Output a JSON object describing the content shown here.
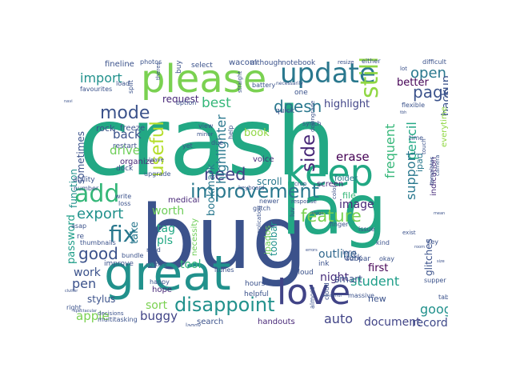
{
  "wordcloud": {
    "colors": {
      "background": "#ffffff",
      "crash": "#22a884",
      "bug": "#3b528b",
      "lag": "#22a884",
      "great": "#21918c",
      "please": "#7ad151",
      "keep": "#22a884",
      "love": "#414487",
      "update": "#2a788e",
      "add": "#35b779",
      "fix": "#2a788e",
      "improvement": "#2a788e",
      "disappoint": "#21918c",
      "feature": "#7ad151",
      "mode": "#3b528b",
      "need": "#414487",
      "useful": "#b5de2b",
      "still": "#90d743",
      "open": "#2a788e",
      "page": "#3b528b",
      "doesn": "#2a788e",
      "export": "#21918c",
      "good": "#3b528b",
      "side": "#482878",
      "best": "#35b779",
      "import": "#21918c",
      "highlighter": "#2a788e",
      "student": "#1f9e89",
      "google": "#21918c",
      "auto": "#414487",
      "document": "#414487",
      "pen": "#3b528b",
      "pencil": "#22a884",
      "support": "#2a788e",
      "frequent": "#35b779",
      "backup": "#3b528b",
      "back": "#3b528b",
      "drive": "#6ece58",
      "worth": "#6ece58",
      "buggy": "#414487",
      "sort": "#7ad151",
      "tool": "#35b779",
      "apple": "#7ad151",
      "work": "#3b528b",
      "erase": "#440154",
      "image": "#482878",
      "record": "#3e4989",
      "night": "#472d7b",
      "outline": "#31688e",
      "tag": "#22a884",
      "pls": "#22a884",
      "take": "#2a788e",
      "password": "#1f9e89",
      "bookmark": "#2a788e",
      "book": "#90d743",
      "highlight": "#414487",
      "request": "#482878",
      "better": "#440154",
      "first": "#440154",
      "smart": "#3b528b",
      "toolbar": "#21918c",
      "scroll": "#2a788e",
      "function": "#21918c",
      "sometimes": "#3b528b",
      "stylus": "#3b528b",
      "glitches": "#3b528b",
      "new": "#3b528b",
      "ipad": "#2a788e",
      "ipados": "#6ece58",
      "multiple": "#482878",
      "everytime": "#90d743",
      "notetaking": "#31688e",
      "indication": "#472d7b",
      "screen": "#482878",
      "voice": "#472d7b",
      "folder": "#2a788e",
      "hope": "#482878",
      "handouts": "#482878",
      "search": "#3b528b",
      "organize": "#482878",
      "dark": "#3b528b",
      "pdf": "#22a884",
      "file": "#35b779",
      "medical": "#482878",
      "necessity": "#6ece58",
      "tiny": "#31688e",
      "small": "#2a788e"
    },
    "words": {
      "crash": "crash",
      "bug": "bug",
      "lag": "lag",
      "great": "great",
      "please": "please",
      "keep": "keep",
      "love": "love",
      "update": "update",
      "add": "add",
      "fix": "fix",
      "improvement": "improvement",
      "disappoint": "disappoint",
      "feature": "feature",
      "mode": "mode",
      "need": "need",
      "useful": "useful",
      "still": "still",
      "open": "open",
      "page": "page",
      "doesn": "doesn",
      "export": "export",
      "good": "good",
      "side": "side",
      "best": "best",
      "import": "import",
      "highlighter": "highlighter",
      "student": "student",
      "google": "google",
      "auto": "auto",
      "document": "document",
      "pen": "pen",
      "pencil": "pencil",
      "support": "support",
      "frequent": "frequent",
      "backup": "backup",
      "back": "back",
      "drive": "drive",
      "worth": "worth",
      "buggy": "buggy",
      "sort": "sort",
      "tool": "tool",
      "apple": "apple",
      "work": "work",
      "erase": "erase",
      "image": "image",
      "record": "record",
      "night": "night",
      "outline": "outline",
      "tag": "tag",
      "pls": "pls",
      "take": "take",
      "password": "password",
      "bookmark": "bookmark",
      "book": "book",
      "highlight": "highlight",
      "request": "request",
      "better": "better",
      "first": "first",
      "smart": "smart",
      "toolbar": "toolbar",
      "scroll": "scroll",
      "function": "function",
      "sometimes": "sometimes",
      "stylus": "stylus",
      "glitches": "glitches",
      "new": "new",
      "ipad": "ipad",
      "ipados": "ipados",
      "multiple": "multiple",
      "everytime": "everytime",
      "notetaking": "notetaking",
      "indication": "indication",
      "screen": "screen",
      "voice": "voice",
      "folder": "folder",
      "hope": "hope",
      "handouts": "handouts",
      "search": "search",
      "organize": "organize",
      "dark": "dark",
      "pdf": "pdf",
      "file": "file",
      "medical": "medical",
      "necessity": "necessity",
      "fineline": "fineline",
      "wacom": "wacom",
      "although": "although",
      "notebook": "notebook",
      "photos": "photos",
      "favourites": "favourites",
      "load": "load",
      "split": "split",
      "rock": "rock",
      "freeze": "freeze",
      "restart": "restart",
      "review": "review",
      "ability": "ability",
      "dock": "dock",
      "number": "number",
      "write": "write",
      "loss": "loss",
      "asap": "asap",
      "re": "re",
      "thumbnails": "thumbnails",
      "bundle": "bundle",
      "improve": "improve",
      "happy": "happy",
      "right": "right",
      "decisions": "decisions",
      "multitasking": "multitasking",
      "laggy": "laggy",
      "hours": "hours",
      "helpful": "helpful",
      "almost": "almost",
      "cloud": "cloud",
      "icloud": "icloud",
      "ink": "ink",
      "subpar": "subpar",
      "okay": "okay",
      "supper": "supper",
      "table": "table",
      "key": "key",
      "kind": "kind",
      "issue": "issue",
      "finger": "finger",
      "massive": "massive",
      "luv": "luv",
      "newer": "newer",
      "glitch": "glitch",
      "keyboard": "keyboard",
      "application": "application",
      "itunes": "itunes",
      "upgrade": "upgrade",
      "leave": "leave",
      "crop": "crop",
      "color": "color",
      "quick": "quick",
      "synch": "synch",
      "downgrade": "downgrade",
      "straight": "straight",
      "battery": "battery",
      "select": "select",
      "buy": "buy",
      "option": "option",
      "view": "view",
      "minor": "minor",
      "due": "due",
      "yet": "yet",
      "help": "help",
      "one": "one",
      "resize": "resize",
      "either": "either",
      "difficult": "difficult",
      "lot": "lot",
      "time": "time",
      "flexible": "flexible",
      "camera": "camera",
      "templates": "templates",
      "touch": "touch",
      "exist": "exist",
      "long": "long",
      "response": "response",
      "content": "content",
      "med": "med",
      "necessarily": "necessarily",
      "theres": "theres",
      "tiny_words": [
        "navi",
        "clutter",
        "spectacular",
        "design",
        "mean",
        "size",
        "room",
        "wonderful",
        "errors",
        "tbh"
      ]
    }
  }
}
